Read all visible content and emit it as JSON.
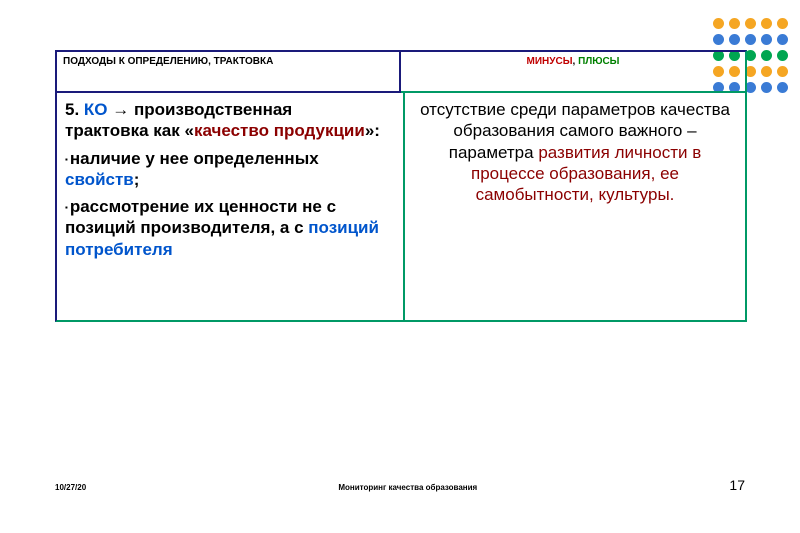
{
  "decoration": {
    "rows": [
      [
        "#f5a623",
        "#f5a623",
        "#f5a623",
        "#f5a623",
        "#f5a623"
      ],
      [
        "#3a7bd5",
        "#3a7bd5",
        "#3a7bd5",
        "#3a7bd5",
        "#3a7bd5"
      ],
      [
        "#00a651",
        "#00a651",
        "#00a651",
        "#00a651",
        "#00a651"
      ],
      [
        "#f5a623",
        "#f5a623",
        "#f5a623",
        "#f5a623",
        "#f5a623"
      ],
      [
        "#3a7bd5",
        "#3a7bd5",
        "#3a7bd5",
        "#3a7bd5",
        "#3a7bd5"
      ]
    ]
  },
  "header": {
    "left": "ПОДХОДЫ    К ОПРЕДЕЛЕНИЮ, ТРАКТОВКА",
    "right_minuses": "МИНУСЫ",
    "right_comma": ", ",
    "right_pluses": "ПЛЮСЫ"
  },
  "left_col": {
    "l1a": "5. ",
    "l1b": "КО",
    "l1c": " → производственная",
    "l2a": " трактовка как «",
    "l2b": "качество продукции",
    "l2c": "»:",
    "b1a": "наличие у нее определенных ",
    "b1b": "свойств",
    "b1c": ";",
    "b2a": "рассмотрение их ценности не с позиций производителя, а с ",
    "b2b": "позиций потребителя"
  },
  "right_col": {
    "t1": "отсутствие среди параметров качества образования самого важного – параметра ",
    "t2": "развития личности в процессе образования, ее самобытности, культуры."
  },
  "footer": {
    "date": "10/27/20",
    "title": "Мониторинг качества образования",
    "page": "17"
  }
}
